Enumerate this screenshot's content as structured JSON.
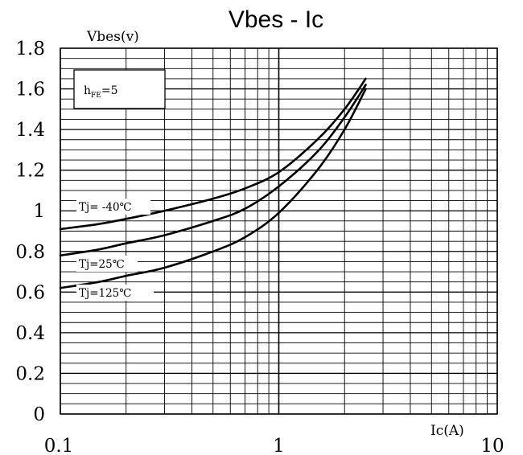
{
  "chart_data": {
    "type": "line",
    "title": "Vbes - Ic",
    "ylabel": "Vbes(v)",
    "xlabel": "Ic(A)",
    "x_scale": "log",
    "xlim": [
      0.1,
      10
    ],
    "ylim": [
      0,
      1.8
    ],
    "x_ticks": [
      "0.1",
      "1",
      "10"
    ],
    "y_ticks": [
      "0",
      "0.2",
      "0.4",
      "0.6",
      "0.8",
      "1",
      "1.2",
      "1.4",
      "1.6",
      "1.8"
    ],
    "grid": true,
    "annotation": {
      "main": "h",
      "sub": "FE",
      "rest": "=5"
    },
    "series": [
      {
        "name": "Tj= -40℃",
        "x": [
          0.1,
          0.15,
          0.2,
          0.3,
          0.5,
          0.7,
          1.0,
          1.5,
          2.0,
          2.5
        ],
        "y": [
          0.91,
          0.935,
          0.96,
          1.0,
          1.06,
          1.11,
          1.19,
          1.35,
          1.5,
          1.65
        ]
      },
      {
        "name": "Tj=25℃",
        "x": [
          0.1,
          0.15,
          0.2,
          0.3,
          0.5,
          0.7,
          1.0,
          1.5,
          2.0,
          2.5
        ],
        "y": [
          0.78,
          0.81,
          0.84,
          0.88,
          0.95,
          1.01,
          1.12,
          1.29,
          1.46,
          1.62
        ]
      },
      {
        "name": "Tj=125℃",
        "x": [
          0.1,
          0.15,
          0.2,
          0.3,
          0.5,
          0.7,
          1.0,
          1.5,
          2.0,
          2.5
        ],
        "y": [
          0.62,
          0.65,
          0.68,
          0.72,
          0.8,
          0.87,
          0.99,
          1.2,
          1.4,
          1.6
        ]
      }
    ]
  }
}
